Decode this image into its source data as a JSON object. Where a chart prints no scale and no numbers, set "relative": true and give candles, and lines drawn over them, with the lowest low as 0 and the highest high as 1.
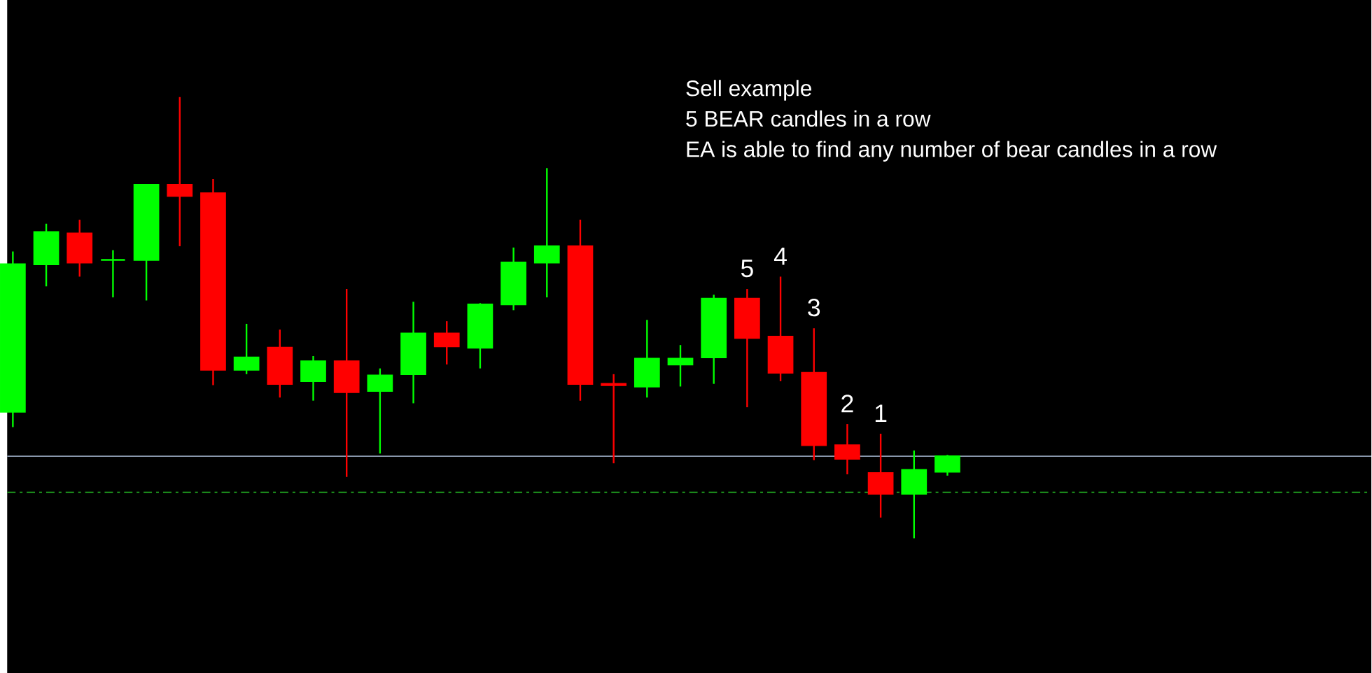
{
  "chart_data": {
    "type": "candlestick",
    "relative": true,
    "categories": [
      null,
      null,
      null,
      null,
      null,
      null,
      null,
      null,
      null,
      null,
      null,
      null,
      null,
      null,
      null,
      null,
      null,
      null,
      null,
      null,
      null,
      null,
      null,
      null,
      null,
      null,
      null,
      null,
      null
    ],
    "ohlc": [
      [
        0.287,
        0.65,
        0.252,
        0.621
      ],
      [
        0.621,
        0.713,
        0.571,
        0.694
      ],
      [
        0.691,
        0.722,
        0.593,
        0.625
      ],
      [
        0.631,
        0.653,
        0.546,
        0.631
      ],
      [
        0.631,
        0.801,
        0.539,
        0.801
      ],
      [
        0.801,
        1,
        0.662,
        0.776
      ],
      [
        0.782,
        0.814,
        0.347,
        0.382
      ],
      [
        0.382,
        0.486,
        0.372,
        0.41
      ],
      [
        0.432,
        0.473,
        0.319,
        0.35
      ],
      [
        0.356,
        0.413,
        0.312,
        0.401
      ],
      [
        0.401,
        0.565,
        0.139,
        0.331
      ],
      [
        0.334,
        0.385,
        0.192,
        0.369
      ],
      [
        0.372,
        0.536,
        0.306,
        0.464
      ],
      [
        0.464,
        0.492,
        0.394,
        0.435
      ],
      [
        0.432,
        0.533,
        0.385,
        0.53
      ],
      [
        0.53,
        0.659,
        0.517,
        0.625
      ],
      [
        0.625,
        0.839,
        0.546,
        0.662
      ],
      [
        0.662,
        0.722,
        0.312,
        0.35
      ],
      [
        0.35,
        0.372,
        0.17,
        0.347
      ],
      [
        0.344,
        0.495,
        0.319,
        0.407
      ],
      [
        0.394,
        0.438,
        0.344,
        0.407
      ],
      [
        0.41,
        0.552,
        0.35,
        0.543
      ],
      [
        0.543,
        0.565,
        0.297,
        0.454
      ],
      [
        0.457,
        0.593,
        0.356,
        0.375
      ],
      [
        0.375,
        0.476,
        0.177,
        0.211
      ],
      [
        0.211,
        0.259,
        0.145,
        0.18
      ],
      [
        0.148,
        0.237,
        0.047,
        0.101
      ],
      [
        0.101,
        0.199,
        0,
        0.155
      ],
      [
        0.151,
        0.189,
        0.142,
        0.186
      ]
    ],
    "colors": [
      "#00ff00",
      "#00ff00",
      "#ff0000",
      "#00ff00",
      "#00ff00",
      "#ff0000",
      "#ff0000",
      "#00ff00",
      "#ff0000",
      "#00ff00",
      "#ff0000",
      "#00ff00",
      "#00ff00",
      "#ff0000",
      "#00ff00",
      "#00ff00",
      "#00ff00",
      "#ff0000",
      "#ff0000",
      "#00ff00",
      "#00ff00",
      "#00ff00",
      "#ff0000",
      "#ff0000",
      "#ff0000",
      "#ff0000",
      "#ff0000",
      "#00ff00",
      "#00ff00"
    ],
    "value_labels": [
      null,
      null,
      null,
      null,
      null,
      null,
      null,
      null,
      null,
      null,
      null,
      null,
      null,
      null,
      null,
      null,
      null,
      null,
      null,
      null,
      null,
      null,
      "5",
      "4",
      "3",
      "2",
      "1",
      null,
      null
    ],
    "ref_lines": [
      {
        "axis": "y",
        "value": 0.186,
        "color": "#8c9bb0",
        "line_style": "solid"
      },
      {
        "axis": "y",
        "value": 0.104,
        "color": "#1f9a1f",
        "line_style": "dashed"
      }
    ],
    "annotations": [
      "Sell example",
      "5 BEAR candles in a row",
      "EA is able to find any number of bear candles in a row"
    ]
  }
}
